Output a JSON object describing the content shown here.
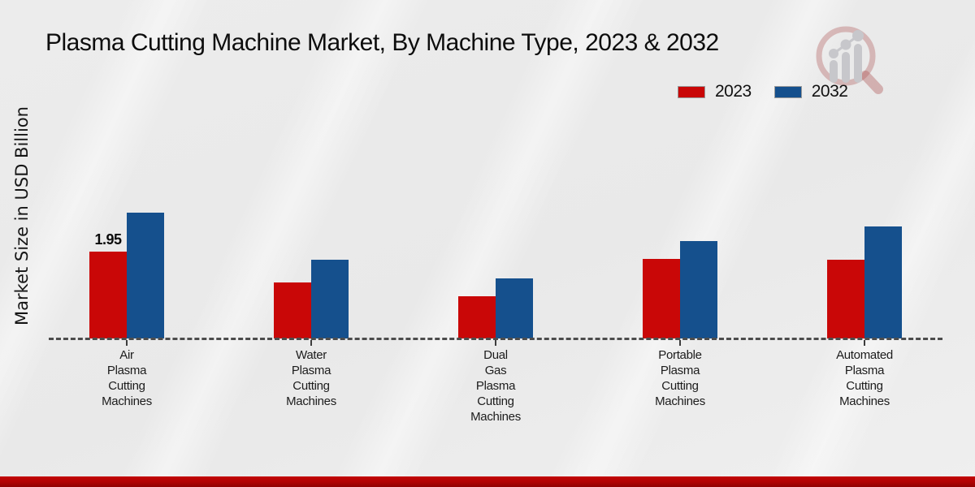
{
  "header": {
    "title": "Plasma Cutting Machine Market, By Machine Type, 2023 & 2032"
  },
  "axes": {
    "y_label": "Market Size in USD Billion"
  },
  "colors": {
    "series_2023": "#c90707",
    "series_2032": "#15508d",
    "footer_accent": "#b00303",
    "baseline_dash": "#4c4c4c"
  },
  "chart_data": {
    "type": "bar",
    "title": "Plasma Cutting Machine Market, By Machine Type, 2023 & 2032",
    "xlabel": "",
    "ylabel": "Market Size in USD Billion",
    "categories": [
      "Air Plasma Cutting Machines",
      "Water Plasma Cutting Machines",
      "Dual Gas Plasma Cutting Machines",
      "Portable Plasma Cutting Machines",
      "Automated Plasma Cutting Machines"
    ],
    "series": [
      {
        "name": "2023",
        "color": "#c90707",
        "values": [
          1.95,
          1.26,
          0.94,
          1.79,
          1.76
        ]
      },
      {
        "name": "2032",
        "color": "#15508d",
        "values": [
          2.82,
          1.77,
          1.34,
          2.18,
          2.51
        ]
      }
    ],
    "data_labels": [
      {
        "series": "2023",
        "category_index": 0,
        "text": "1.95"
      }
    ],
    "ylim": [
      0,
      3
    ],
    "grid": false,
    "baseline_style": "dashed",
    "legend_position": "top-right"
  }
}
